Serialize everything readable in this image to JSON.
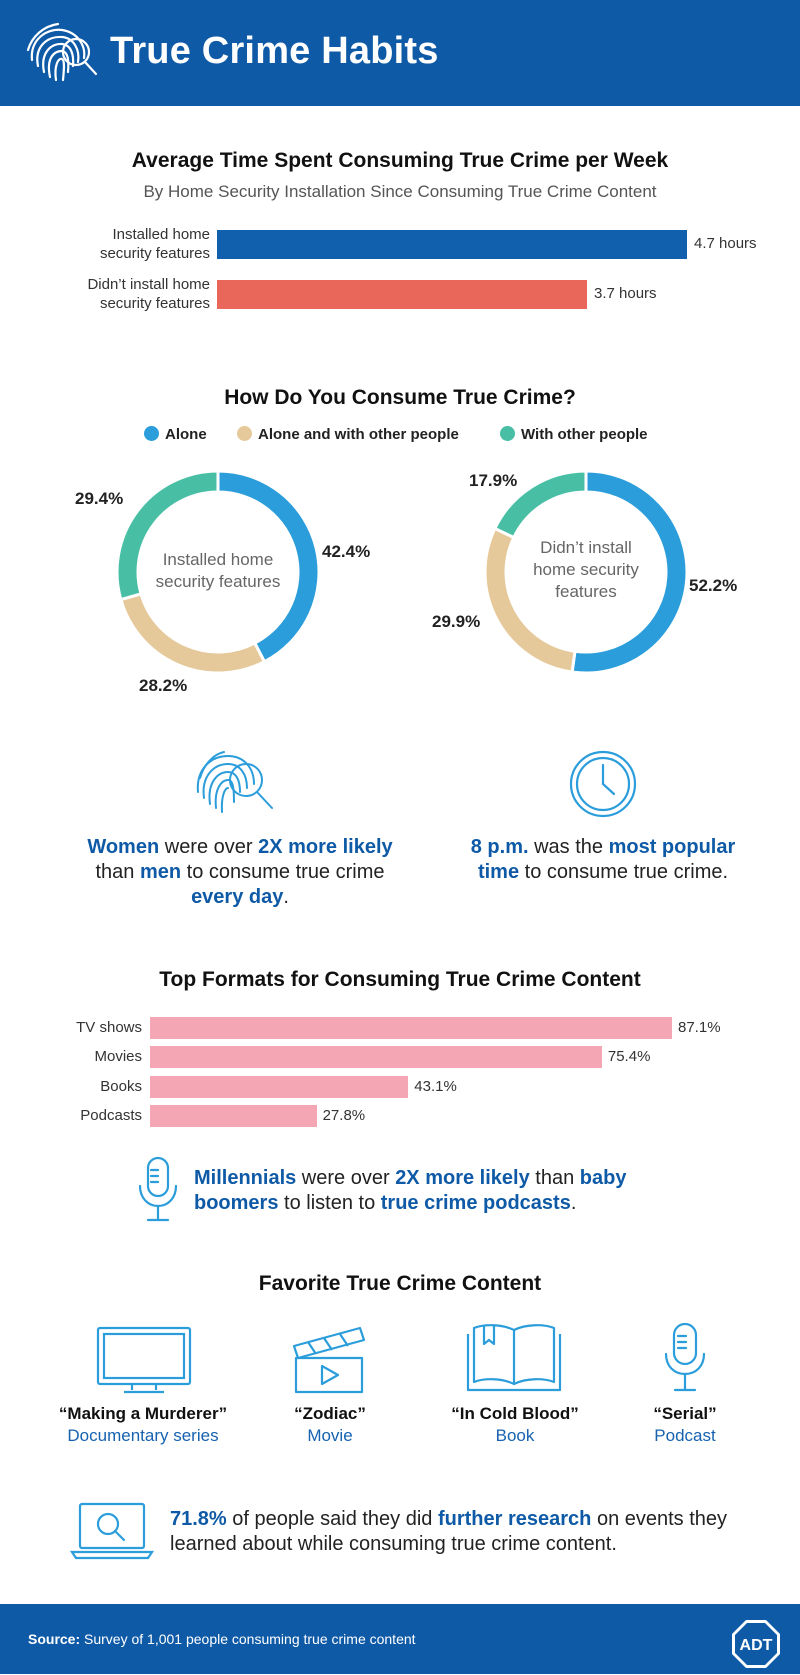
{
  "header": {
    "title": "True Crime Habits"
  },
  "chart1": {
    "title": "Average Time Spent Consuming True Crime per Week",
    "subtitle": "By Home Security Installation Since Consuming True Crime Content"
  },
  "chart_data": [
    {
      "type": "bar",
      "orientation": "horizontal",
      "title": "Average Time Spent Consuming True Crime per Week",
      "subtitle": "By Home Security Installation Since Consuming True Crime Content",
      "categories": [
        "Installed home security features",
        "Didn’t install home security features"
      ],
      "category_lines": [
        [
          "Installed home",
          "security features"
        ],
        [
          "Didn’t install home",
          "security features"
        ]
      ],
      "values": [
        4.7,
        3.7
      ],
      "value_labels": [
        "4.7 hours",
        "3.7 hours"
      ],
      "colors": [
        "#1160ad",
        "#e9665a"
      ],
      "unit": "hours",
      "xlim": [
        0,
        4.7
      ]
    },
    {
      "type": "pie",
      "variant": "donut",
      "title": "How Do You Consume True Crime?",
      "center_label": "Installed home security features",
      "labels": [
        "Alone",
        "Alone and with other people",
        "With other people"
      ],
      "values": [
        42.4,
        28.2,
        29.4
      ],
      "value_labels": [
        "42.4%",
        "28.2%",
        "29.4%"
      ],
      "colors": [
        "#2b9ddb",
        "#e6c99a",
        "#48bfa5"
      ]
    },
    {
      "type": "pie",
      "variant": "donut",
      "title": "How Do You Consume True Crime?",
      "center_label": "Didn’t install home security features",
      "labels": [
        "Alone",
        "Alone and with other people",
        "With other people"
      ],
      "values": [
        52.2,
        29.9,
        17.9
      ],
      "value_labels": [
        "52.2%",
        "29.9%",
        "17.9%"
      ],
      "colors": [
        "#2b9ddb",
        "#e6c99a",
        "#48bfa5"
      ]
    },
    {
      "type": "bar",
      "orientation": "horizontal",
      "title": "Top Formats for Consuming True Crime Content",
      "categories": [
        "TV shows",
        "Movies",
        "Books",
        "Podcasts"
      ],
      "values": [
        87.1,
        75.4,
        43.1,
        27.8
      ],
      "value_labels": [
        "87.1%",
        "75.4%",
        "43.1%",
        "27.8%"
      ],
      "unit": "%",
      "color": "#f4a6b5",
      "xlim": [
        0,
        87.1
      ]
    }
  ],
  "chart2": {
    "title": "How Do You Consume True Crime?",
    "legend": [
      "Alone",
      "Alone and with other people",
      "With other people"
    ],
    "donut1_center": [
      "Installed home",
      "security features"
    ],
    "donut2_center": [
      "Didn’t install",
      "home security",
      "features"
    ]
  },
  "stats": {
    "women": [
      "Women",
      " were over ",
      "2X more likely",
      " than ",
      "men",
      " to consume true crime ",
      "every day",
      "."
    ],
    "time": [
      "8 p.m.",
      " was the ",
      "most popular time",
      " to consume true crime."
    ]
  },
  "chart3": {
    "title": "Top Formats for Consuming True Crime Content"
  },
  "podcast_stat": [
    "Millennials",
    " were over ",
    "2X more likely",
    " than ",
    "baby boomers",
    " to listen to ",
    "true crime podcasts",
    "."
  ],
  "favorites": {
    "title": "Favorite True Crime Content",
    "items": [
      {
        "title": "“Making a Murderer”",
        "kind": "Documentary series",
        "icon": "tv-icon"
      },
      {
        "title": "“Zodiac”",
        "kind": "Movie",
        "icon": "clapperboard-icon"
      },
      {
        "title": "“In Cold Blood”",
        "kind": "Book",
        "icon": "book-icon"
      },
      {
        "title": "“Serial”",
        "kind": "Podcast",
        "icon": "microphone-icon"
      }
    ]
  },
  "research_stat": [
    "71.8%",
    " of people said they did ",
    "further research",
    " on events they learned about while consuming true crime content."
  ],
  "footer": {
    "source_label": "Source:",
    "source_text": " Survey of 1,001 people consuming true crime content",
    "logo_text": "ADT"
  },
  "colors": {
    "brand_blue": "#0f5aa6",
    "bar_blue": "#1160ad",
    "bar_coral": "#e9665a",
    "pink": "#f4a6b5",
    "alone": "#2b9ddb",
    "mixed": "#e6c99a",
    "others": "#48bfa5"
  }
}
